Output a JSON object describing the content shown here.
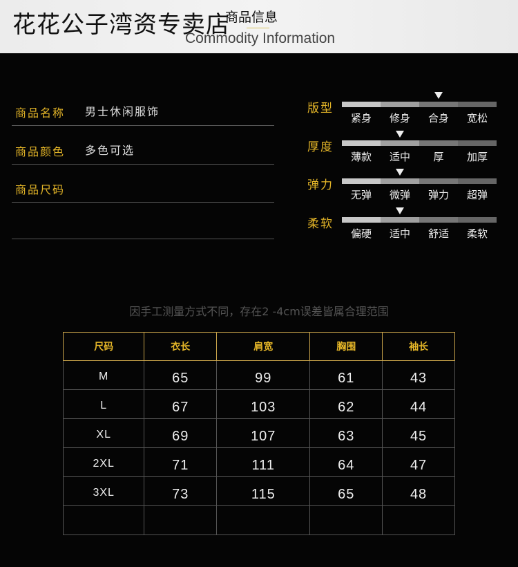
{
  "header": {
    "shop_name": "花花公子湾资专卖店",
    "section_title": "商品信息",
    "section_subtitle": "Commodity Information"
  },
  "info": [
    {
      "label": "商品名称",
      "value": "男士休闲服饰"
    },
    {
      "label": "商品颜色",
      "value": "多色可选"
    },
    {
      "label": "商品尺码",
      "value": ""
    }
  ],
  "attributes": [
    {
      "label": "版型",
      "options": [
        "紧身",
        "修身",
        "合身",
        "宽松"
      ],
      "selected_index": 2
    },
    {
      "label": "厚度",
      "options": [
        "薄款",
        "适中",
        "厚",
        "加厚"
      ],
      "selected_index": 1
    },
    {
      "label": "弹力",
      "options": [
        "无弹",
        "微弹",
        "弹力",
        "超弹"
      ],
      "selected_index": 1
    },
    {
      "label": "柔软",
      "options": [
        "偏硬",
        "适中",
        "舒适",
        "柔软"
      ],
      "selected_index": 1
    }
  ],
  "note": "因手工测量方式不同，存在2 -4cm误差皆属合理范围",
  "size_table": {
    "headers": [
      "尺码",
      "衣长",
      "肩宽",
      "胸围",
      "袖长"
    ],
    "rows": [
      [
        "M",
        "65",
        "99",
        "61",
        "43"
      ],
      [
        "L",
        "67",
        "103",
        "62",
        "44"
      ],
      [
        "XL",
        "69",
        "107",
        "63",
        "45"
      ],
      [
        "2XL",
        "71",
        "111",
        "64",
        "47"
      ],
      [
        "3XL",
        "73",
        "115",
        "65",
        "48"
      ],
      [
        "",
        "",
        "",
        "",
        ""
      ]
    ]
  },
  "colors": {
    "accent": "#e5b628",
    "background": "#050505"
  }
}
